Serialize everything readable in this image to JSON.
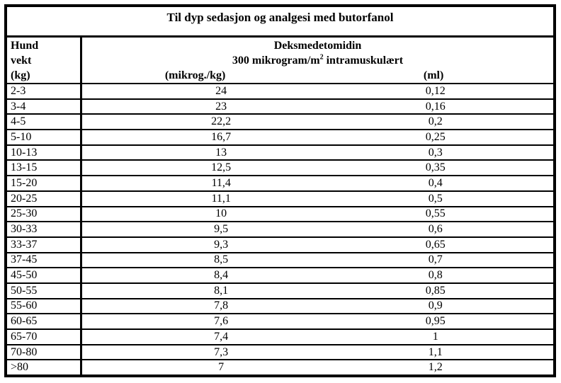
{
  "table": {
    "title": "Til dyp sedasjon og analgesi med butorfanol",
    "weight_header": {
      "line1": "Hund",
      "line2": "vekt",
      "line3": "(kg)"
    },
    "drug_header": {
      "drug_name": "Deksmedetomidin",
      "dose_desc_pre": "300 mikrogram/m",
      "dose_desc_sup": "2",
      "dose_desc_post": " intramuskulært",
      "dose_unit_label": "(mikrog./kg)",
      "ml_unit_label": "(ml)"
    },
    "rows": [
      {
        "weight": "2-3",
        "dose": "24",
        "ml": "0,12"
      },
      {
        "weight": "3-4",
        "dose": "23",
        "ml": "0,16"
      },
      {
        "weight": "4-5",
        "dose": "22,2",
        "ml": "0,2"
      },
      {
        "weight": "5-10",
        "dose": "16,7",
        "ml": "0,25"
      },
      {
        "weight": "10-13",
        "dose": "13",
        "ml": "0,3"
      },
      {
        "weight": "13-15",
        "dose": "12,5",
        "ml": "0,35"
      },
      {
        "weight": "15-20",
        "dose": "11,4",
        "ml": "0,4"
      },
      {
        "weight": "20-25",
        "dose": "11,1",
        "ml": "0,5"
      },
      {
        "weight": "25-30",
        "dose": "10",
        "ml": "0,55"
      },
      {
        "weight": "30-33",
        "dose": "9,5",
        "ml": "0,6"
      },
      {
        "weight": "33-37",
        "dose": "9,3",
        "ml": "0,65"
      },
      {
        "weight": "37-45",
        "dose": "8,5",
        "ml": "0,7"
      },
      {
        "weight": "45-50",
        "dose": "8,4",
        "ml": "0,8"
      },
      {
        "weight": "50-55",
        "dose": "8,1",
        "ml": "0,85"
      },
      {
        "weight": "55-60",
        "dose": "7,8",
        "ml": "0,9"
      },
      {
        "weight": "60-65",
        "dose": "7,6",
        "ml": "0,95"
      },
      {
        "weight": "65-70",
        "dose": "7,4",
        "ml": "1"
      },
      {
        "weight": "70-80",
        "dose": "7,3",
        "ml": "1,1"
      },
      {
        "weight": ">80",
        "dose": "7",
        "ml": "1,2"
      }
    ],
    "colors": {
      "border": "#000000",
      "text": "#000000",
      "background": "#ffffff"
    }
  }
}
